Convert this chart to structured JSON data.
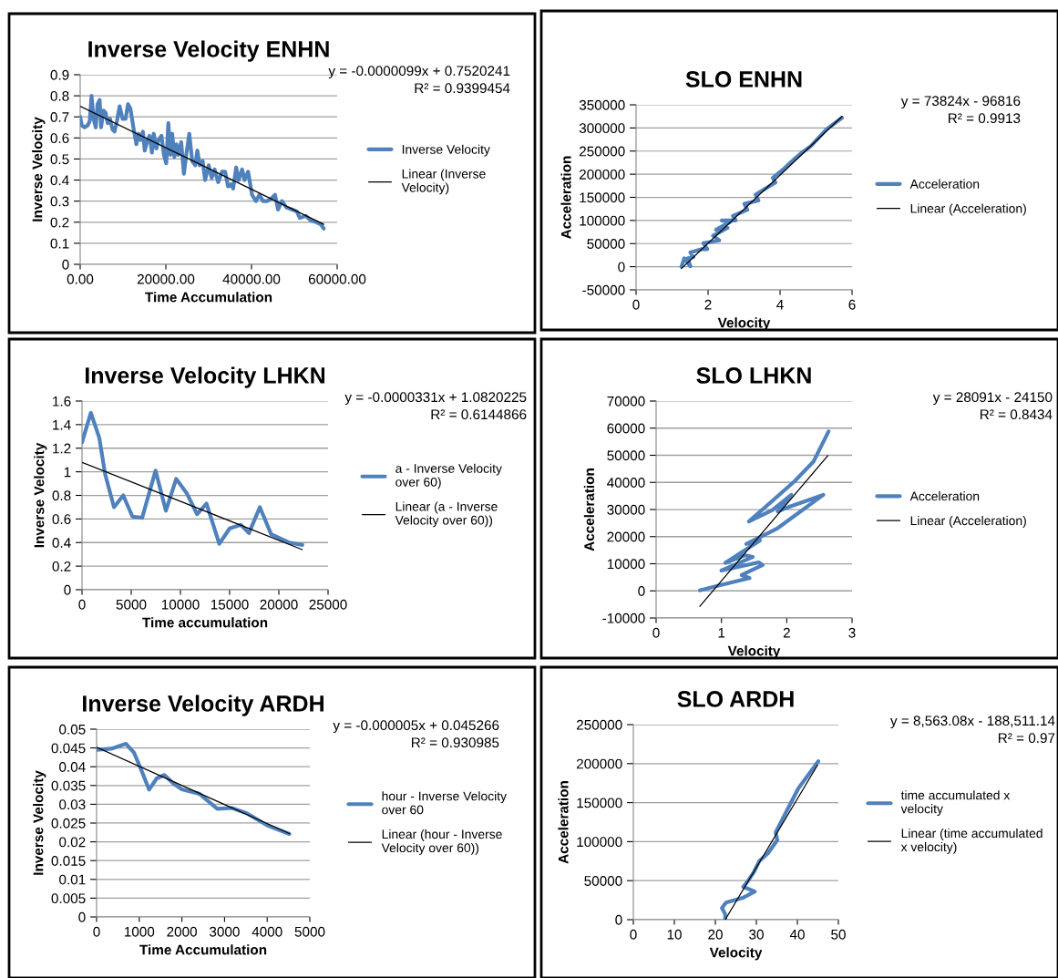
{
  "chart_data": [
    {
      "type": "line",
      "title": "Inverse Velocity ENHN",
      "xlabel": "Time Accumulation",
      "ylabel": "Inverse Velocity",
      "xlim": [
        0,
        60000
      ],
      "ylim": [
        0,
        0.9
      ],
      "xticks": [
        {
          "value": 0,
          "label": "0.00"
        },
        {
          "value": 20000,
          "label": "20000.00"
        },
        {
          "value": 40000,
          "label": "40000.00"
        },
        {
          "value": 60000,
          "label": "60000.00"
        }
      ],
      "yticks": [
        0,
        0.1,
        0.2,
        0.3,
        0.4,
        0.5,
        0.6,
        0.7,
        0.8,
        0.9
      ],
      "grid": "y",
      "legend": "right",
      "annotations": [
        "y = -0.0000099x + 0.7520241",
        "R² = 0.9399454"
      ],
      "series": [
        {
          "name": "Inverse Velocity",
          "color": "#4f81bd",
          "x": [
            0,
            350,
            1050,
            1750,
            2230,
            2650,
            3140,
            3630,
            4050,
            4540,
            4880,
            5440,
            5930,
            6420,
            6980,
            7540,
            8020,
            8580,
            9210,
            9910,
            10600,
            11160,
            11720,
            12420,
            13120,
            13600,
            14100,
            14650,
            15070,
            15700,
            16200,
            16750,
            17170,
            17790,
            18280,
            18980,
            19540,
            20090,
            20580,
            21070,
            21490,
            21980,
            22470,
            22890,
            23590,
            24210,
            24770,
            25470,
            26160,
            26860,
            27350,
            27910,
            28600,
            29160,
            30000,
            30700,
            31400,
            32230,
            33140,
            33840,
            34530,
            35230,
            35720,
            36420,
            36980,
            37810,
            38370,
            39210,
            40120,
            41030,
            41860,
            42700,
            43610,
            44510,
            45490,
            46190,
            47100,
            48140,
            49540,
            50580,
            51280,
            52680,
            53720,
            55120,
            56170,
            56870
          ],
          "values": [
            0.7,
            0.66,
            0.65,
            0.66,
            0.68,
            0.8,
            0.69,
            0.65,
            0.76,
            0.78,
            0.65,
            0.73,
            0.72,
            0.67,
            0.69,
            0.64,
            0.63,
            0.68,
            0.75,
            0.69,
            0.69,
            0.76,
            0.74,
            0.65,
            0.57,
            0.62,
            0.59,
            0.63,
            0.54,
            0.59,
            0.61,
            0.53,
            0.62,
            0.55,
            0.59,
            0.61,
            0.52,
            0.48,
            0.67,
            0.52,
            0.62,
            0.51,
            0.57,
            0.52,
            0.58,
            0.43,
            0.52,
            0.62,
            0.49,
            0.47,
            0.54,
            0.47,
            0.49,
            0.4,
            0.47,
            0.41,
            0.45,
            0.39,
            0.44,
            0.44,
            0.37,
            0.38,
            0.36,
            0.46,
            0.4,
            0.45,
            0.4,
            0.44,
            0.33,
            0.3,
            0.33,
            0.3,
            0.3,
            0.31,
            0.33,
            0.26,
            0.3,
            0.27,
            0.26,
            0.25,
            0.22,
            0.23,
            0.21,
            0.2,
            0.19,
            0.17
          ]
        },
        {
          "name": "Linear (Inverse\nVelocity)",
          "color": "#000000",
          "x": [
            0,
            56870
          ],
          "values": [
            0.75,
            0.19
          ]
        }
      ]
    },
    {
      "type": "line",
      "title": "SLO ENHN",
      "xlabel": "Velocity",
      "ylabel": "Acceleration",
      "xlim": [
        0,
        6
      ],
      "ylim": [
        -50000,
        350000
      ],
      "xticks": [
        0,
        2,
        4,
        6
      ],
      "yticks": [
        -50000,
        0,
        50000,
        100000,
        150000,
        200000,
        250000,
        300000,
        350000
      ],
      "grid": "y",
      "legend": "right",
      "annotations": [
        "y = 73824x - 96816",
        "R² = 0.9913"
      ],
      "series": [
        {
          "name": "Acceleration",
          "color": "#4f81bd",
          "x": [
            1.26,
            1.34,
            1.51,
            1.43,
            1.59,
            1.51,
            1.83,
            1.98,
            1.87,
            2.31,
            2.14,
            2.54,
            2.22,
            2.62,
            2.38,
            2.77,
            2.69,
            3.09,
            3.01,
            3.4,
            3.32,
            3.87,
            3.8,
            4.11,
            4.43,
            4.58,
            4.86,
            5.06,
            5.29,
            5.72
          ],
          "values": [
            0,
            18000,
            1000,
            18000,
            21000,
            31000,
            38000,
            38000,
            51000,
            57000,
            67000,
            84000,
            80000,
            97000,
            100000,
            100000,
            110000,
            123000,
            136000,
            143000,
            156000,
            182000,
            192000,
            212000,
            235000,
            245000,
            261000,
            278000,
            297000,
            322000
          ]
        },
        {
          "name": "Linear (Acceleration)",
          "color": "#000000",
          "x": [
            1.26,
            5.72
          ],
          "values": [
            -4000,
            325000
          ]
        }
      ]
    },
    {
      "type": "line",
      "title": "Inverse Velocity LHKN",
      "xlabel": "Time accumulation",
      "ylabel": "Inverse Velocity",
      "xlim": [
        0,
        25000
      ],
      "ylim": [
        0,
        1.6
      ],
      "xticks": [
        0,
        5000,
        10000,
        15000,
        20000,
        25000
      ],
      "yticks": [
        0,
        0.2,
        0.4,
        0.6,
        0.8,
        1,
        1.2,
        1.4,
        1.6
      ],
      "grid": "y",
      "legend": "right",
      "annotations": [
        "y = -0.0000331x + 1.0820225",
        "R² = 0.6144866"
      ],
      "series": [
        {
          "name": "a - Inverse Velocity\nover 60)",
          "color": "#4f81bd",
          "x": [
            0,
            900,
            1750,
            2350,
            3250,
            4190,
            5120,
            6110,
            7470,
            8520,
            9570,
            10630,
            11690,
            12650,
            13950,
            15000,
            16140,
            16960,
            18070,
            19220,
            21020,
            22380
          ],
          "values": [
            1.25,
            1.5,
            1.29,
            0.98,
            0.7,
            0.8,
            0.62,
            0.61,
            1.01,
            0.67,
            0.94,
            0.82,
            0.64,
            0.73,
            0.39,
            0.52,
            0.55,
            0.48,
            0.7,
            0.47,
            0.4,
            0.38
          ]
        },
        {
          "name": "Linear (a - Inverse\nVelocity over 60))",
          "color": "#000000",
          "x": [
            0,
            22380
          ],
          "values": [
            1.08,
            0.34
          ]
        }
      ]
    },
    {
      "type": "line",
      "title": "SLO LHKN",
      "xlabel": "Velocity",
      "ylabel": "Acceleration",
      "xlim": [
        0,
        3
      ],
      "ylim": [
        -10000,
        70000
      ],
      "xticks": [
        0,
        1,
        2,
        3
      ],
      "yticks": [
        -10000,
        0,
        10000,
        20000,
        30000,
        40000,
        50000,
        60000,
        70000
      ],
      "grid": "y",
      "legend": "right",
      "annotations": [
        "y = 28091x - 24150",
        "R² = 0.8434"
      ],
      "series": [
        {
          "name": "Acceleration",
          "color": "#4f81bd",
          "x": [
            0.67,
            0.98,
            1.43,
            1.31,
            1.63,
            1.57,
            1.0,
            1.48,
            1.36,
            1.06,
            1.27,
            1.59,
            1.38,
            1.86,
            2.56,
            2.03,
            1.86,
            2.07,
            1.78,
            1.42,
            1.78,
            2.12,
            2.41,
            2.64
          ],
          "values": [
            200,
            2100,
            4700,
            5800,
            9500,
            10500,
            7500,
            12500,
            13100,
            10300,
            13600,
            18600,
            17300,
            23100,
            35400,
            30900,
            29300,
            35400,
            29800,
            25600,
            33200,
            40400,
            47700,
            58800
          ]
        },
        {
          "name": "Linear (Acceleration)",
          "color": "#000000",
          "x": [
            0.67,
            2.63
          ],
          "values": [
            -5700,
            49900
          ]
        }
      ]
    },
    {
      "type": "line",
      "title": "Inverse Velocity ARDH",
      "xlabel": "Time Accumulation",
      "ylabel": "Inverse Velocity",
      "xlim": [
        0,
        5000
      ],
      "ylim": [
        0,
        0.05
      ],
      "xticks": [
        0,
        1000,
        2000,
        3000,
        4000,
        5000
      ],
      "yticks": [
        0,
        0.005,
        0.01,
        0.015,
        0.02,
        0.025,
        0.03,
        0.035,
        0.04,
        0.045,
        0.05
      ],
      "grid": "y",
      "legend": "right",
      "annotations": [
        "y = -0.000005x + 0.045266",
        "R² = 0.930985"
      ],
      "series": [
        {
          "name": "hour - Inverse Velocity\nover 60",
          "color": "#4f81bd",
          "x": [
            0,
            345,
            690,
            880,
            1070,
            1230,
            1410,
            1590,
            1790,
            2000,
            2410,
            2830,
            3170,
            3520,
            4000,
            4520
          ],
          "values": [
            0.0445,
            0.0448,
            0.0461,
            0.0437,
            0.0385,
            0.0339,
            0.0369,
            0.0378,
            0.0356,
            0.034,
            0.0328,
            0.0288,
            0.029,
            0.0276,
            0.0244,
            0.0221
          ]
        },
        {
          "name": "Linear (hour - Inverse\nVelocity over 60))",
          "color": "#000000",
          "x": [
            0,
            4520
          ],
          "values": [
            0.0452,
            0.0222
          ]
        }
      ]
    },
    {
      "type": "line",
      "title": "SLO ARDH",
      "xlabel": "Velocity",
      "ylabel": "Acceleration",
      "xlim": [
        0,
        50
      ],
      "ylim": [
        0,
        250000
      ],
      "xticks": [
        0,
        10,
        20,
        30,
        40,
        50
      ],
      "yticks": [
        0,
        50000,
        100000,
        150000,
        200000,
        250000
      ],
      "grid": "y",
      "legend": "right",
      "annotations": [
        "y = 8,563.08x - 188,511.14",
        "R² = 0.97"
      ],
      "series": [
        {
          "name": "time accumulated x\nvelocity",
          "color": "#4f81bd",
          "x": [
            22.4,
            22.4,
            21.6,
            22.6,
            26.7,
            29.6,
            26.8,
            28.0,
            29.4,
            30.7,
            32.8,
            35.1,
            34.7,
            36.2,
            40.2,
            45.1
          ],
          "values": [
            0,
            7000,
            15000,
            22000,
            28000,
            36000,
            42000,
            50000,
            61000,
            75000,
            85000,
            102000,
            112000,
            127000,
            168000,
            203000
          ]
        },
        {
          "name": "Linear (time accumulated\nx velocity)",
          "color": "#000000",
          "x": [
            22.4,
            44.9
          ],
          "values": [
            0,
            198000
          ]
        }
      ]
    }
  ]
}
